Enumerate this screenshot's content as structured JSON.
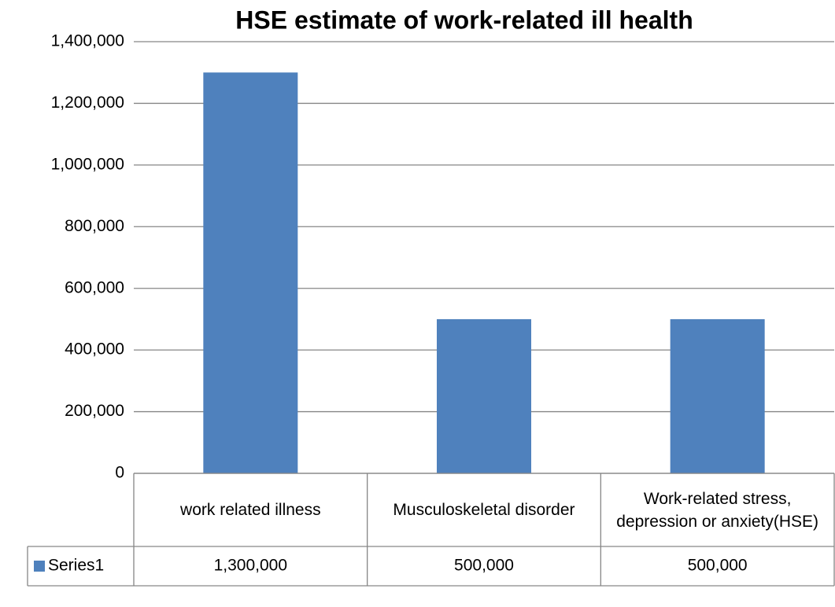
{
  "chart_data": {
    "type": "bar",
    "title": "HSE estimate of work-related ill health",
    "categories": [
      "work related illness",
      "Musculoskeletal disorder",
      "Work-related stress, depression or anxiety(HSE)"
    ],
    "series": [
      {
        "name": "Series1",
        "color": "#4f81bd",
        "values": [
          1300000,
          500000,
          500000
        ],
        "value_labels": [
          "1,300,000",
          "500,000",
          "500,000"
        ]
      }
    ],
    "ylim": [
      0,
      1400000
    ],
    "yticks": [
      0,
      {
        "value": 200000,
        "label": "200,000"
      },
      {
        "value": 400000,
        "label": "400,000"
      },
      {
        "value": 600000,
        "label": "600,000"
      },
      {
        "value": 800000,
        "label": "800,000"
      },
      {
        "value": 1000000,
        "label": "1,000,000"
      },
      {
        "value": 1200000,
        "label": "1,200,000"
      },
      {
        "value": 1400000,
        "label": "1,400,000"
      }
    ],
    "grid": true,
    "legend": "data-table"
  }
}
